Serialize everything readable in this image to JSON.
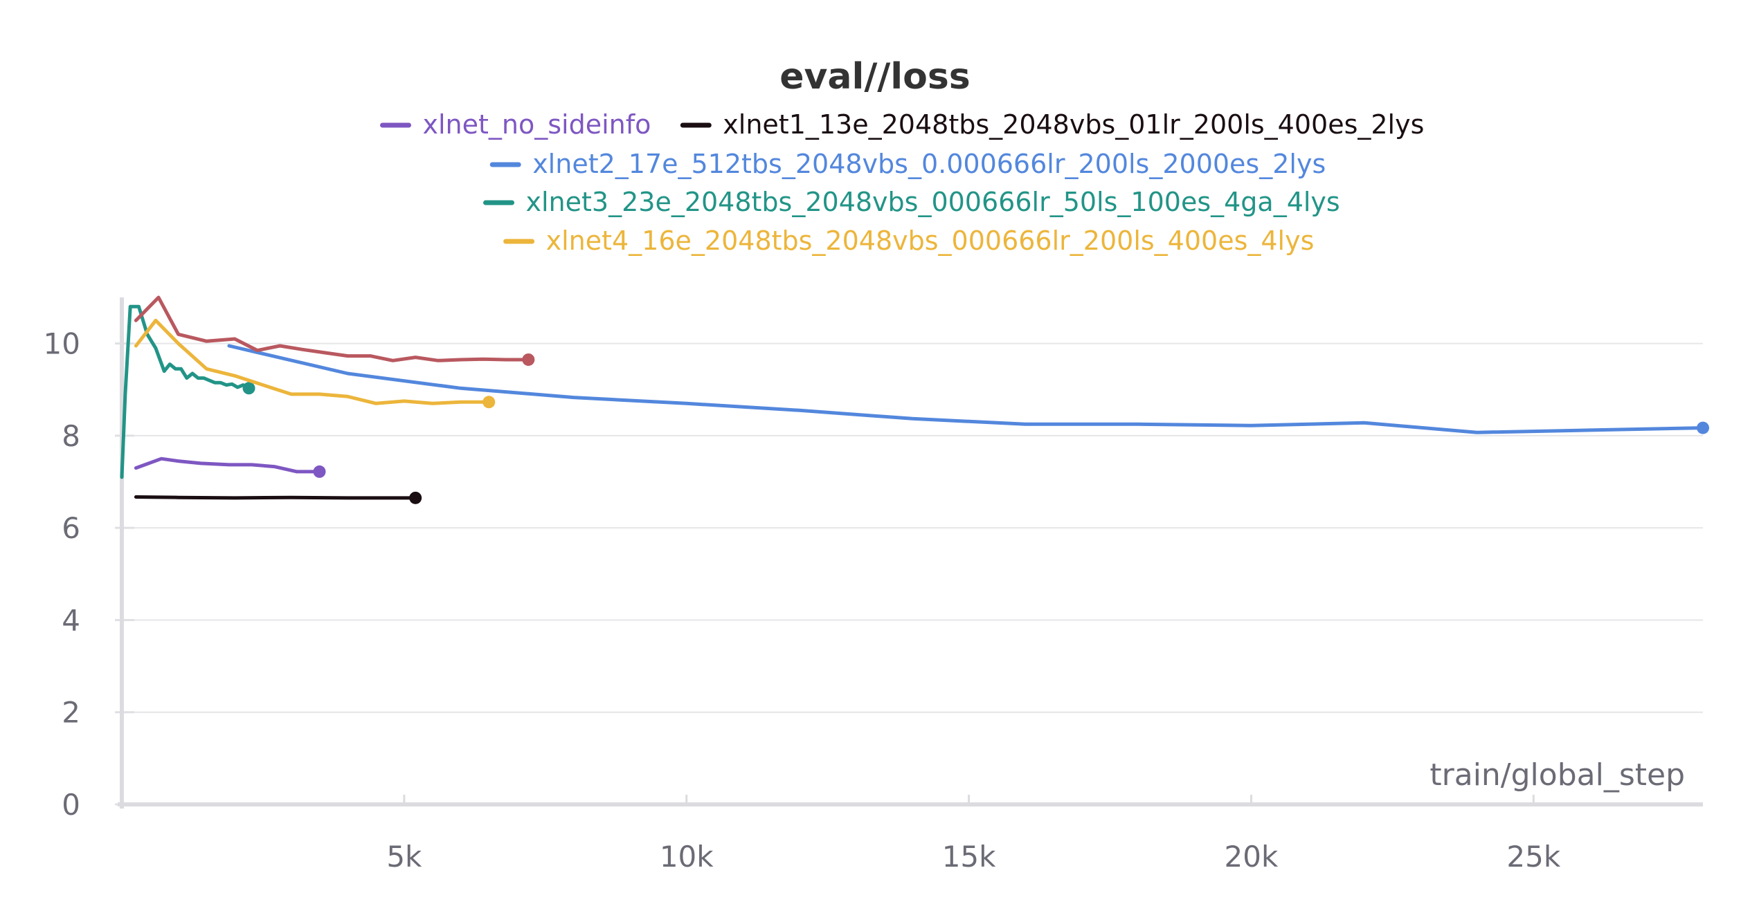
{
  "chart_data": {
    "type": "line",
    "title": "eval//loss",
    "xlabel": "train/global_step",
    "ylabel": "",
    "xlim": [
      0,
      28000
    ],
    "ylim": [
      0,
      11
    ],
    "xticks": [
      5000,
      10000,
      15000,
      20000,
      25000
    ],
    "xtick_labels": [
      "5k",
      "10k",
      "15k",
      "20k",
      "25k"
    ],
    "yticks": [
      0,
      2,
      4,
      6,
      8,
      10
    ],
    "ytick_labels": [
      "0",
      "2",
      "4",
      "6",
      "8",
      "10"
    ],
    "grid": true,
    "legend_position": "top",
    "series": [
      {
        "name": "xlnet_no_sideinfo",
        "color": "#7e57c2",
        "x": [
          250,
          700,
          1000,
          1400,
          1900,
          2300,
          2700,
          3100,
          3500
        ],
        "y": [
          7.3,
          7.5,
          7.45,
          7.4,
          7.37,
          7.37,
          7.33,
          7.22,
          7.22
        ]
      },
      {
        "name": "xlnet1_13e_2048tbs_2048vbs_01lr_200ls_400es_2lys",
        "color": "#1a0e12",
        "x": [
          250,
          1000,
          2000,
          3000,
          4000,
          5000,
          5200
        ],
        "y": [
          6.67,
          6.66,
          6.65,
          6.66,
          6.65,
          6.65,
          6.65
        ]
      },
      {
        "name": "xlnet2_17e_512tbs_2048vbs_0.000666lr_200ls_2000es_2lys",
        "color": "#5387dd",
        "x": [
          1900,
          4000,
          6000,
          8000,
          10000,
          12000,
          14000,
          16000,
          18000,
          20000,
          22000,
          24000,
          26000,
          28000
        ],
        "y": [
          9.95,
          9.35,
          9.03,
          8.83,
          8.7,
          8.55,
          8.37,
          8.25,
          8.25,
          8.22,
          8.28,
          8.07,
          8.12,
          8.17
        ]
      },
      {
        "name": "xlnet3_23e_2048tbs_2048vbs_000666lr_50ls_100es_4ga_4lys",
        "color": "#229487",
        "x": [
          0,
          60,
          150,
          300,
          450,
          600,
          750,
          850,
          950,
          1050,
          1150,
          1250,
          1350,
          1450,
          1550,
          1650,
          1750,
          1850,
          1950,
          2050,
          2150,
          2250
        ],
        "y": [
          7.1,
          8.9,
          10.8,
          10.8,
          10.2,
          9.9,
          9.4,
          9.55,
          9.45,
          9.45,
          9.25,
          9.35,
          9.25,
          9.25,
          9.2,
          9.15,
          9.15,
          9.1,
          9.12,
          9.05,
          9.1,
          9.03
        ]
      },
      {
        "name": "xlnet4_16e_2048tbs_2048vbs_000666lr_200ls_400es_4lys",
        "color": "#ecb53b",
        "x": [
          250,
          600,
          1000,
          1500,
          2000,
          2500,
          3000,
          3500,
          4000,
          4500,
          5000,
          5500,
          6000,
          6500
        ],
        "y": [
          9.95,
          10.5,
          10.0,
          9.45,
          9.3,
          9.1,
          8.9,
          8.9,
          8.85,
          8.7,
          8.75,
          8.7,
          8.73,
          8.73
        ]
      },
      {
        "name": "",
        "color": "#b9585f",
        "x": [
          250,
          650,
          1000,
          1500,
          2000,
          2400,
          2800,
          3200,
          3600,
          4000,
          4400,
          4800,
          5200,
          5600,
          6000,
          6400,
          6800,
          7200
        ],
        "y": [
          10.5,
          11.0,
          10.2,
          10.05,
          10.1,
          9.85,
          9.95,
          9.87,
          9.8,
          9.73,
          9.73,
          9.63,
          9.7,
          9.63,
          9.65,
          9.66,
          9.65,
          9.65
        ]
      }
    ]
  }
}
